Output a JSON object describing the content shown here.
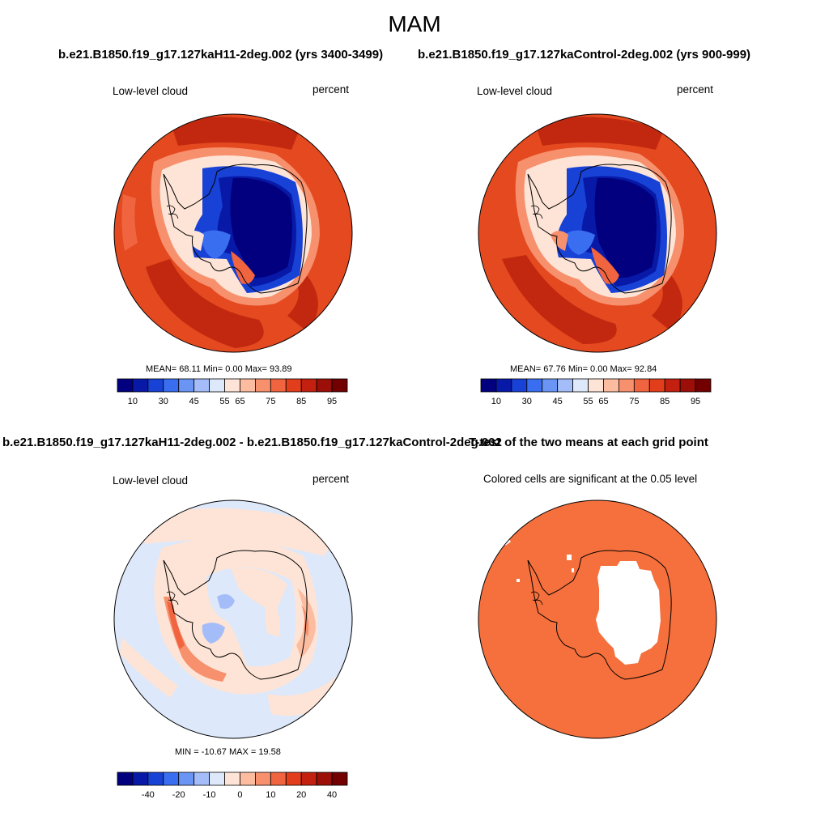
{
  "figure": {
    "season": "MAM",
    "title_left": "b.e21.B1850.f19_g17.127kaH11-2deg.002 (yrs 3400-3499)",
    "title_right": "b.e21.B1850.f19_g17.127kaControl-2deg.002 (yrs 900-999)",
    "title_diff": "b.e21.B1850.f19_g17.127kaH11-2deg.002 - b.e21.B1850.f19_g17.127kaControl-2deg.002",
    "title_ttest": "T-test of the two means at each grid point"
  },
  "panels": {
    "h11": {
      "variable": "Low-level cloud",
      "units": "percent",
      "stats_text": "MEAN=  68.11  Min=   0.00  Max=  93.89",
      "mean": 68.11,
      "min": 0.0,
      "max": 93.89
    },
    "control": {
      "variable": "Low-level cloud",
      "units": "percent",
      "stats_text": "MEAN=  67.76  Min=   0.00  Max=  92.84",
      "mean": 67.76,
      "min": 0.0,
      "max": 92.84
    },
    "difference": {
      "variable": "Low-level cloud",
      "units": "percent",
      "stats_text": "MIN = -10.67 MAX =  19.58",
      "min": -10.67,
      "max": 19.58
    },
    "ttest": {
      "note": "Colored cells are significant at the 0.05 level",
      "significant_color": "#f5703c"
    }
  },
  "colorbars": {
    "absolute": {
      "colors": [
        "#02007f",
        "#0719a6",
        "#1841d6",
        "#3a6ef0",
        "#6a95f5",
        "#a4bdf8",
        "#dde8fb",
        "#fde4d6",
        "#fbbca0",
        "#f7906d",
        "#f0643f",
        "#e23e1c",
        "#c3200f",
        "#9c0f08",
        "#720000"
      ],
      "labels": [
        "10",
        "30",
        "45",
        "55",
        "65",
        "75",
        "85",
        "95"
      ]
    },
    "difference": {
      "colors": [
        "#02007f",
        "#0719a6",
        "#1841d6",
        "#3a6ef0",
        "#6a95f5",
        "#a4bdf8",
        "#dde8fb",
        "#fde4d6",
        "#fbbca0",
        "#f7906d",
        "#f0643f",
        "#e23e1c",
        "#c3200f",
        "#9c0f08",
        "#720000"
      ],
      "labels": [
        "-40",
        "-20",
        "-10",
        "0",
        "10",
        "20",
        "40"
      ]
    }
  },
  "colors": {
    "ocean_high_cloud": "#e4491f",
    "ocean_highest_cloud": "#c1280f",
    "continent_low_cloud": "#02007f",
    "diff_background": "#dde8fb",
    "diff_positive": "#fde4d6"
  }
}
